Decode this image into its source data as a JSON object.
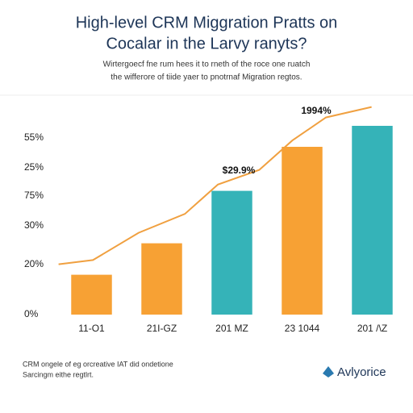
{
  "chart_data": {
    "type": "bar",
    "title": [
      "High-level CRM Miggration Pratts on",
      "Cocalar in the Larvy ranyts?"
    ],
    "subtitle": [
      "Wirtergoecf fne rum hees it to rneth of the roce one ruatch",
      "the wifferore of tiide yaer to pnotrnaf Migration regtos."
    ],
    "y_axis_labels": [
      "55%",
      "25%",
      "75%",
      "30%",
      "20%",
      "0%"
    ],
    "categories": [
      "11-O1",
      "21I-GZ",
      "201 MZ",
      "23 1044",
      "201 /\\Z"
    ],
    "values": [
      19,
      34,
      59,
      80,
      90
    ],
    "colors": [
      "#f7a134",
      "#f7a134",
      "#35b3b8",
      "#f7a134",
      "#35b3b8"
    ],
    "ylim": [
      0,
      100
    ],
    "xlim": [
      -0.5,
      4.5
    ],
    "line": {
      "color": "#f0a040",
      "x": [
        -0.47,
        0.02,
        0.67,
        1.33,
        1.8,
        2.39,
        2.86,
        3.34,
        3.99
      ],
      "values": [
        24,
        26,
        39,
        48,
        62,
        69,
        83,
        94,
        99
      ]
    },
    "annotations": [
      "$29.9%",
      "1994%"
    ],
    "footer": [
      "CRM ongele of eg orcreative IAT did ondetione",
      "Sarcingm eithe regtlrt."
    ],
    "brand": "Avlyorice"
  }
}
